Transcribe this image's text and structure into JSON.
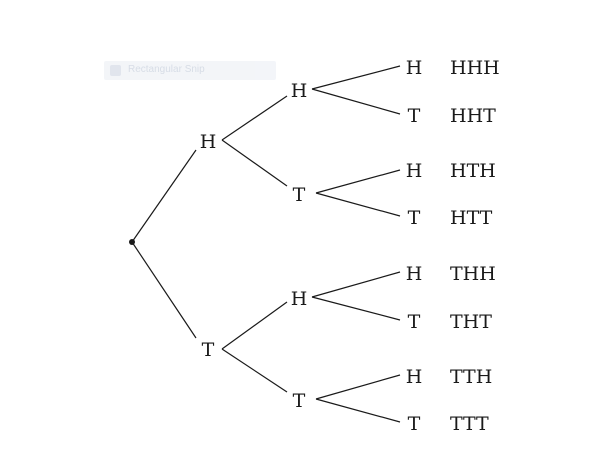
{
  "tooltip": {
    "text": "Rectangular Snip"
  },
  "tree": {
    "level1": [
      "H",
      "T"
    ],
    "level2": [
      "H",
      "T",
      "H",
      "T"
    ],
    "level3": [
      "H",
      "T",
      "H",
      "T",
      "H",
      "T",
      "H",
      "T"
    ],
    "outcomes": [
      "HHH",
      "HHT",
      "HTH",
      "HTT",
      "THH",
      "THT",
      "TTH",
      "TTT"
    ]
  }
}
